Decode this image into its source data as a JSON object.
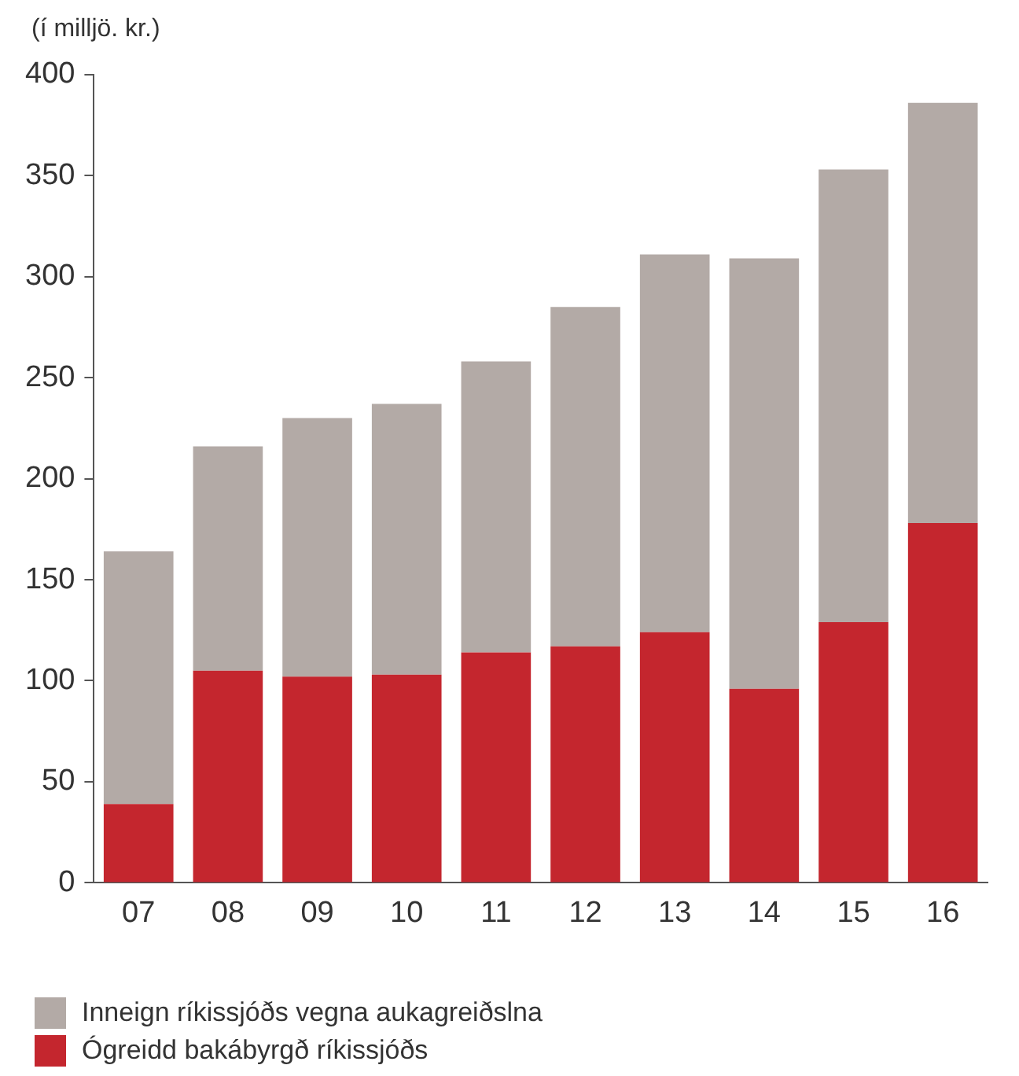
{
  "chart_data": {
    "type": "bar",
    "ylabel": "(í milljö. kr.)",
    "categories": [
      "07",
      "08",
      "09",
      "10",
      "11",
      "12",
      "13",
      "14",
      "15",
      "16"
    ],
    "stacked": true,
    "series": [
      {
        "name": "Ógreidd bakábyrgð ríkissjóðs",
        "color": "#c4262e",
        "values": [
          39,
          105,
          102,
          103,
          114,
          117,
          124,
          96,
          129,
          178
        ]
      },
      {
        "name": "Inneign ríkissjóðs vegna aukagreiðslna",
        "color": "#b3aaa6",
        "values": [
          125,
          111,
          128,
          134,
          144,
          168,
          187,
          213,
          224,
          208
        ]
      }
    ],
    "ylim": [
      0,
      400
    ],
    "yticks": [
      0,
      50,
      100,
      150,
      200,
      250,
      300,
      350,
      400
    ],
    "grid": false,
    "legend": "bottom left"
  }
}
